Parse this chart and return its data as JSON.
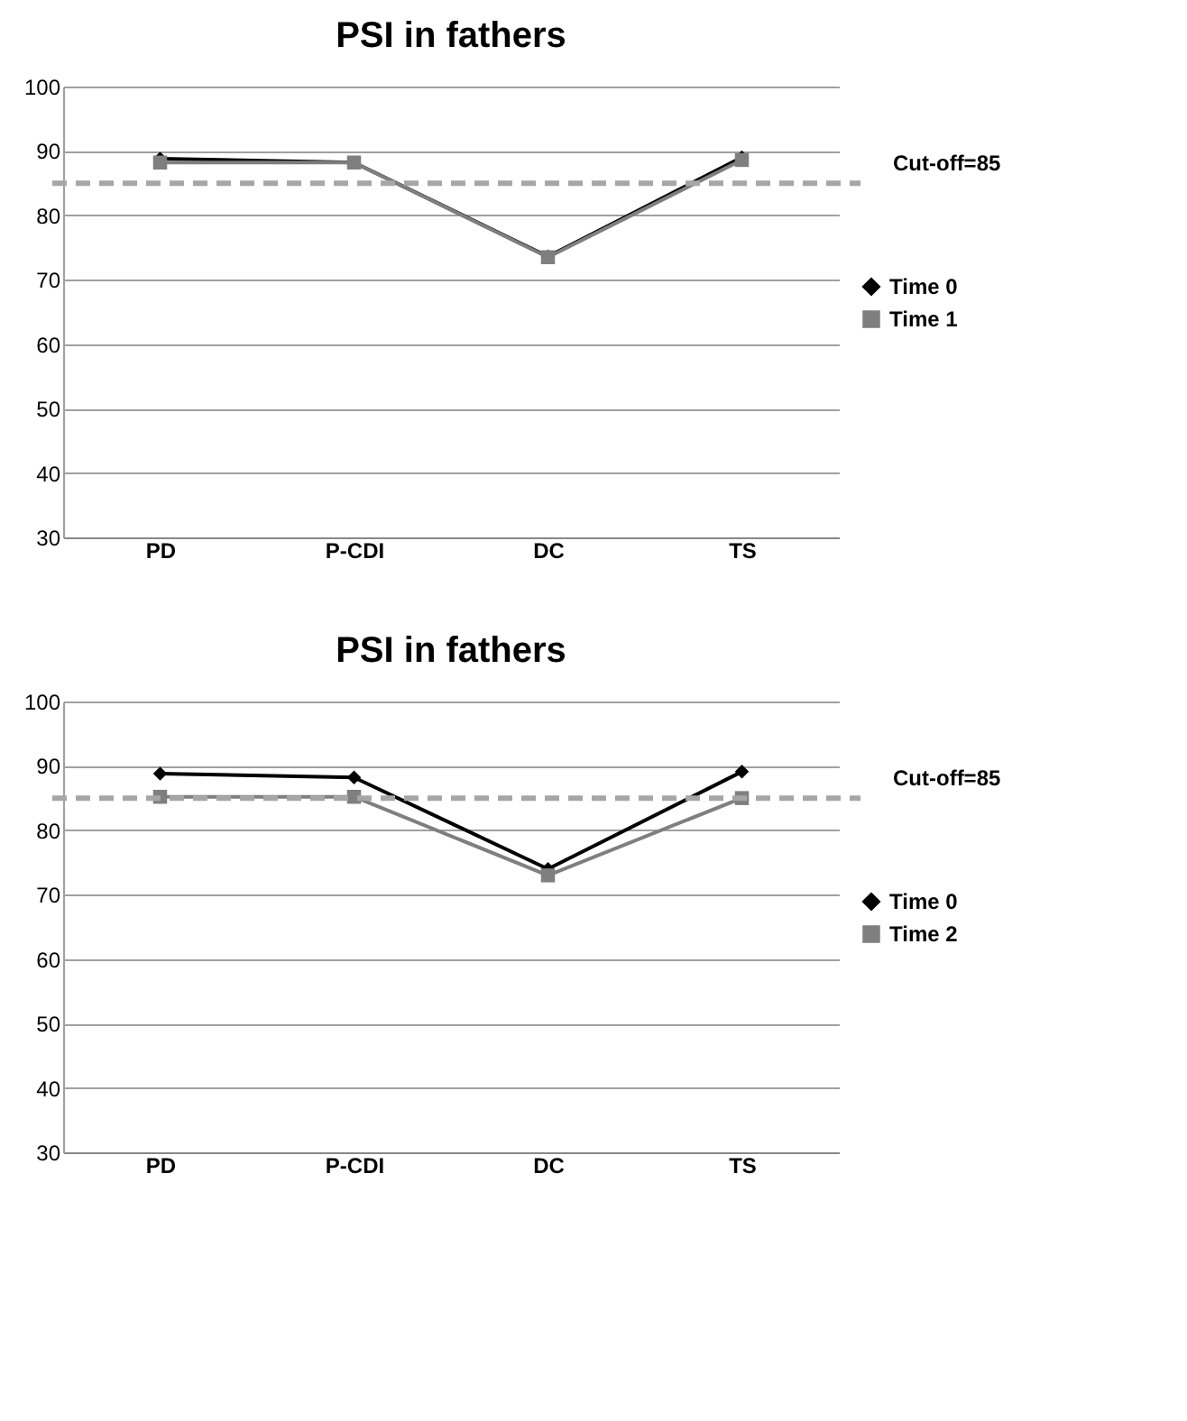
{
  "chart_data": [
    {
      "type": "line",
      "title": "PSI in fathers",
      "categories": [
        "PD",
        "P-CDI",
        "DC",
        "TS"
      ],
      "series": [
        {
          "name": "Time 0",
          "color": "#000000",
          "marker": "diamond",
          "values": [
            88.8,
            88.2,
            73.6,
            89
          ]
        },
        {
          "name": "Time 1",
          "color": "#7f7f7f",
          "marker": "square",
          "values": [
            88.2,
            88.2,
            73.5,
            88.6
          ]
        }
      ],
      "ylim": [
        30,
        100
      ],
      "yticks": [
        30,
        40,
        50,
        60,
        70,
        80,
        90,
        100
      ],
      "grid": "y",
      "legend": "right",
      "line_style": "solid",
      "ref_lines": [
        {
          "axis": "y",
          "value": 85,
          "label": "Cut-off=85",
          "color": "#a6a6a6",
          "line_style": "dashed"
        }
      ]
    },
    {
      "type": "line",
      "title": "PSI in fathers",
      "categories": [
        "PD",
        "P-CDI",
        "DC",
        "TS"
      ],
      "series": [
        {
          "name": "Time 0",
          "color": "#000000",
          "marker": "diamond",
          "values": [
            88.8,
            88.2,
            74,
            89.1
          ]
        },
        {
          "name": "Time 2",
          "color": "#7f7f7f",
          "marker": "square",
          "values": [
            85.2,
            85.2,
            73,
            85
          ]
        }
      ],
      "ylim": [
        30,
        100
      ],
      "yticks": [
        30,
        40,
        50,
        60,
        70,
        80,
        90,
        100
      ],
      "grid": "y",
      "legend": "right",
      "line_style": "solid",
      "ref_lines": [
        {
          "axis": "y",
          "value": 85,
          "label": "Cut-off=85",
          "color": "#a6a6a6",
          "line_style": "dashed"
        }
      ]
    }
  ]
}
